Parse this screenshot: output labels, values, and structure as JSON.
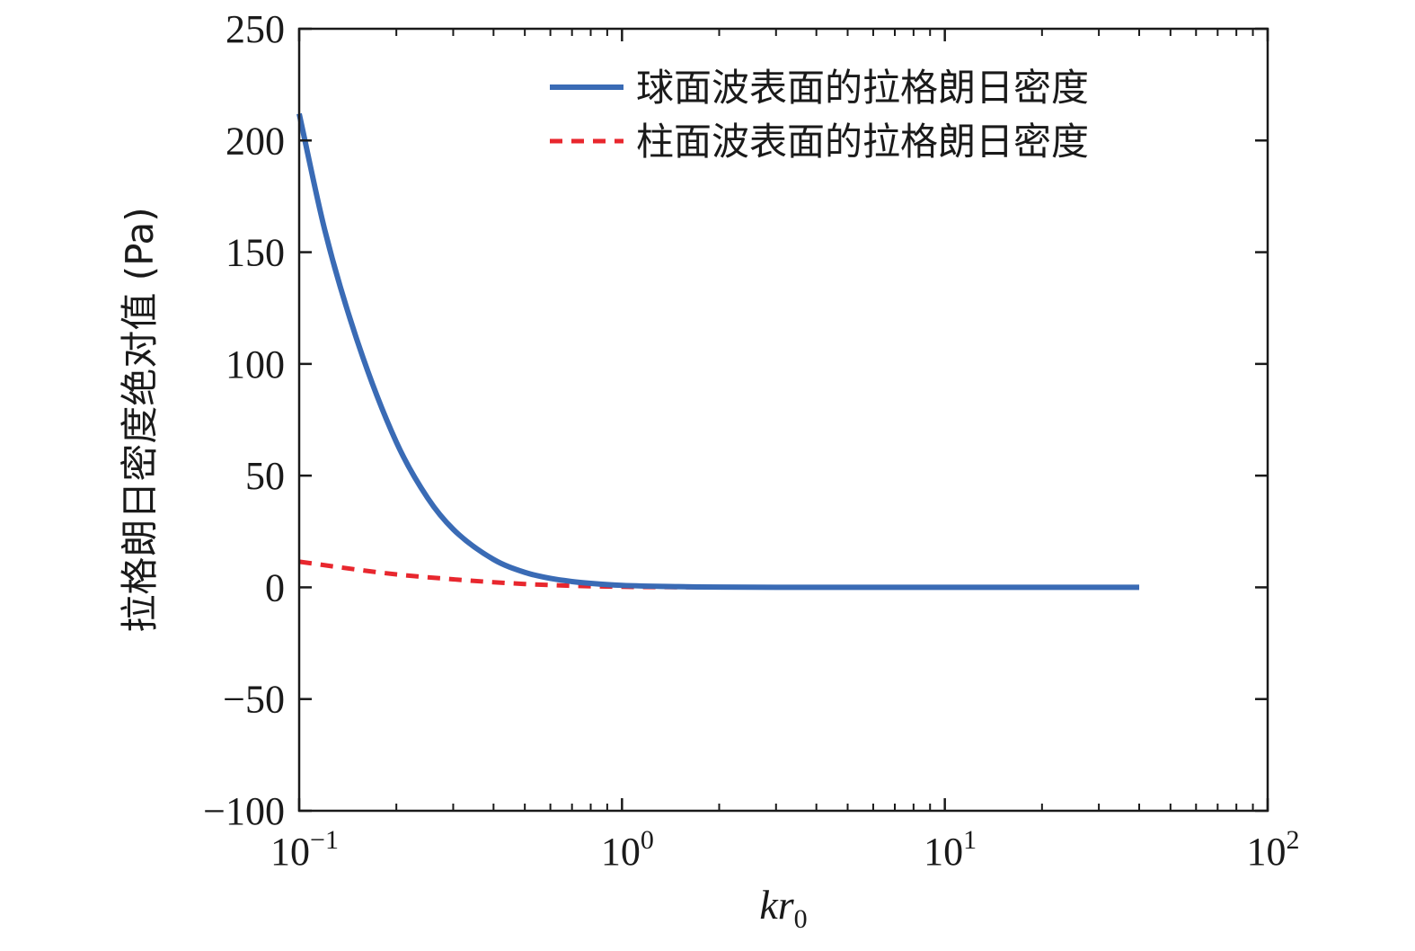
{
  "chart_data": {
    "type": "line",
    "xscale": "log",
    "xlim": [
      0.1,
      100
    ],
    "ylim": [
      -100,
      250
    ],
    "x_ticks": [
      {
        "base": "10",
        "exp": "−1"
      },
      {
        "base": "10",
        "exp": "0"
      },
      {
        "base": "10",
        "exp": "1"
      },
      {
        "base": "10",
        "exp": "2"
      }
    ],
    "y_ticks": [
      "250",
      "200",
      "150",
      "100",
      "50",
      "0",
      "−50",
      "−100"
    ],
    "y_tick_values": [
      250,
      200,
      150,
      100,
      50,
      0,
      -50,
      -100
    ],
    "xlabel": {
      "main": "kr",
      "sub": "0"
    },
    "ylabel": "拉格朗日密度绝对值 (Pa)",
    "legend_position": "top-right",
    "grid": false,
    "series": [
      {
        "name": "球面波表面的拉格朗日密度",
        "color": "#3a6bb5",
        "style": "solid",
        "x": [
          0.1,
          0.12,
          0.15,
          0.2,
          0.25,
          0.3,
          0.4,
          0.5,
          0.6,
          0.7,
          0.8,
          1,
          1.5,
          2,
          3,
          5,
          10,
          20,
          40
        ],
        "y": [
          212,
          160,
          112,
          65,
          40,
          26,
          12.5,
          6.7,
          4.0,
          2.6,
          1.8,
          0.9,
          0.3,
          0.12,
          0.04,
          0.01,
          0,
          0,
          0
        ]
      },
      {
        "name": "柱面波表面的拉格朗日密度",
        "color": "#e8272e",
        "style": "dashed",
        "x": [
          0.1,
          0.15,
          0.2,
          0.3,
          0.4,
          0.5,
          0.7,
          1,
          1.5,
          2,
          5,
          10,
          20,
          40
        ],
        "y": [
          11.5,
          8.0,
          5.8,
          3.6,
          2.3,
          1.5,
          0.7,
          0.25,
          0.08,
          0.03,
          0,
          0,
          0,
          0
        ]
      }
    ]
  }
}
